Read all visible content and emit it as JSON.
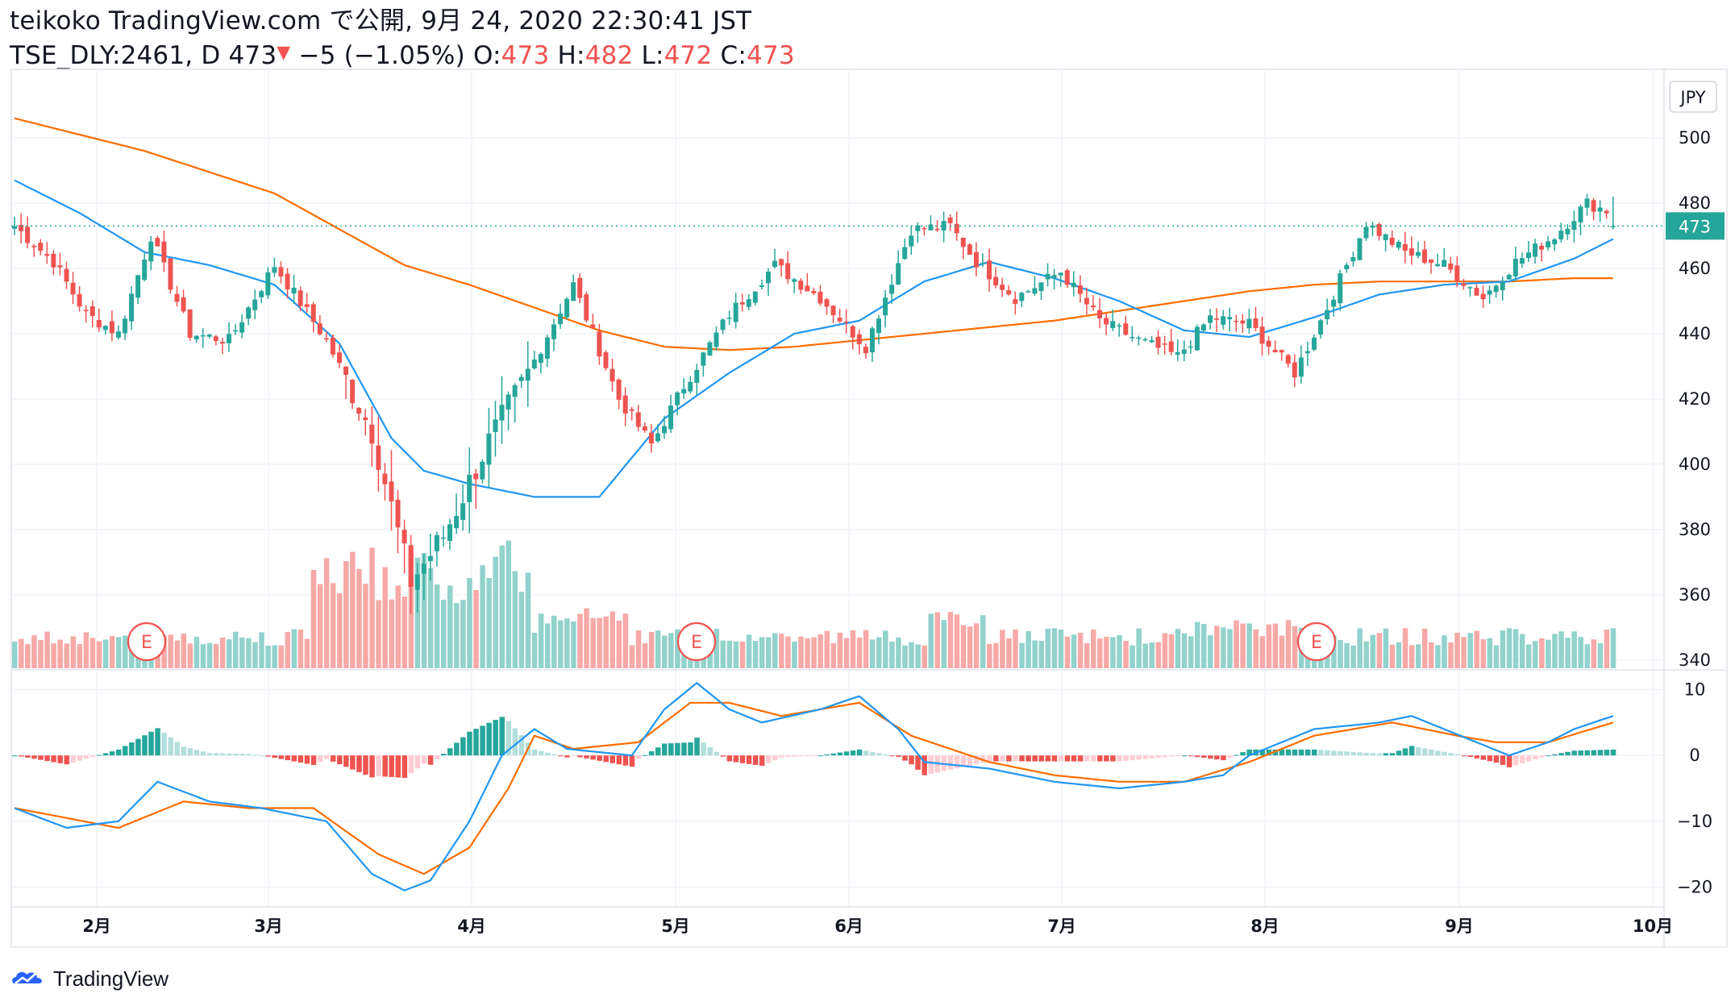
{
  "header": {
    "line1": "teikoko TradingView.com で公開, 9月 24, 2020 22:30:41 JST",
    "symbol": "TSE_DLY:2461, D 473",
    "change": "−5 (−1.05%)",
    "o_label": "O:",
    "o_value": "473",
    "h_label": "H:",
    "h_value": "482",
    "l_label": "L:",
    "l_value": "472",
    "c_label": "C:",
    "c_value": "473"
  },
  "currency": "JPY",
  "last_price_label": "473",
  "footer": {
    "brand": "TradingView"
  },
  "colors": {
    "up": "#26a69a",
    "down": "#ef5350",
    "vol_up": "#92d2cc",
    "vol_down": "#f7a9a7",
    "ma_short": "#2196f3",
    "ma_long": "#ff6d00",
    "macd": "#2196f3",
    "signal": "#ff6d00",
    "hist_up_strong": "#26a69a",
    "hist_up_weak": "#b2dfdb",
    "hist_down_strong": "#ef5350",
    "hist_down_weak": "#ffcdd2",
    "grid": "#f0f3fa",
    "border": "#e0e3eb"
  },
  "chart_data": {
    "type": "candlestick",
    "x_axis_labels": [
      "2月",
      "3月",
      "4月",
      "5月",
      "6月",
      "7月",
      "8月",
      "9月",
      "10月"
    ],
    "price_axis": {
      "ticks": [
        340,
        360,
        380,
        400,
        420,
        440,
        460,
        480,
        500
      ],
      "range": [
        337,
        521
      ]
    },
    "macd_axis": {
      "ticks": [
        10,
        0,
        -10,
        -20
      ],
      "range": [
        -23,
        13
      ]
    },
    "earnings_markers": [
      "E",
      "E",
      "E"
    ],
    "price_anchors": [
      [
        0,
        473
      ],
      [
        6,
        462
      ],
      [
        11,
        446
      ],
      [
        16,
        440
      ],
      [
        21,
        470
      ],
      [
        27,
        440
      ],
      [
        33,
        438
      ],
      [
        40,
        461
      ],
      [
        48,
        438
      ],
      [
        55,
        410
      ],
      [
        61,
        364
      ],
      [
        66,
        378
      ],
      [
        73,
        407
      ],
      [
        79,
        428
      ],
      [
        86,
        455
      ],
      [
        93,
        420
      ],
      [
        98,
        406
      ],
      [
        103,
        424
      ],
      [
        110,
        446
      ],
      [
        117,
        461
      ],
      [
        124,
        451
      ],
      [
        131,
        436
      ],
      [
        138,
        472
      ],
      [
        144,
        473
      ],
      [
        148,
        462
      ],
      [
        154,
        451
      ],
      [
        161,
        459
      ],
      [
        167,
        444
      ],
      [
        173,
        438
      ],
      [
        179,
        433
      ],
      [
        184,
        445
      ],
      [
        190,
        443
      ],
      [
        197,
        428
      ],
      [
        202,
        448
      ],
      [
        208,
        474
      ],
      [
        214,
        465
      ],
      [
        220,
        461
      ],
      [
        226,
        451
      ],
      [
        231,
        462
      ],
      [
        237,
        470
      ],
      [
        242,
        480
      ],
      [
        246,
        477
      ]
    ],
    "ohlc_last": {
      "open": 473,
      "high": 482,
      "low": 472,
      "close": 473
    },
    "ma_short_anchors": [
      [
        0,
        487
      ],
      [
        10,
        477
      ],
      [
        20,
        465
      ],
      [
        30,
        461
      ],
      [
        40,
        455
      ],
      [
        50,
        437
      ],
      [
        58,
        408
      ],
      [
        63,
        398
      ],
      [
        70,
        394
      ],
      [
        80,
        390
      ],
      [
        90,
        390
      ],
      [
        100,
        414
      ],
      [
        110,
        428
      ],
      [
        120,
        440
      ],
      [
        130,
        444
      ],
      [
        140,
        456
      ],
      [
        150,
        462
      ],
      [
        160,
        457
      ],
      [
        170,
        450
      ],
      [
        180,
        441
      ],
      [
        190,
        439
      ],
      [
        200,
        445
      ],
      [
        210,
        452
      ],
      [
        220,
        455
      ],
      [
        230,
        456
      ],
      [
        240,
        463
      ],
      [
        246,
        469
      ]
    ],
    "ma_long_anchors": [
      [
        0,
        506
      ],
      [
        20,
        496
      ],
      [
        40,
        483
      ],
      [
        60,
        461
      ],
      [
        70,
        455
      ],
      [
        80,
        448
      ],
      [
        90,
        441
      ],
      [
        100,
        436
      ],
      [
        110,
        435
      ],
      [
        120,
        436
      ],
      [
        130,
        438
      ],
      [
        140,
        440
      ],
      [
        150,
        442
      ],
      [
        160,
        444
      ],
      [
        170,
        447
      ],
      [
        180,
        450
      ],
      [
        190,
        453
      ],
      [
        200,
        455
      ],
      [
        210,
        456
      ],
      [
        220,
        456
      ],
      [
        230,
        456
      ],
      [
        240,
        457
      ],
      [
        246,
        457
      ]
    ],
    "macd_anchors": [
      [
        0,
        -8
      ],
      [
        8,
        -11
      ],
      [
        16,
        -10
      ],
      [
        22,
        -4
      ],
      [
        30,
        -7
      ],
      [
        38,
        -8
      ],
      [
        48,
        -10
      ],
      [
        55,
        -18
      ],
      [
        60,
        -20.5
      ],
      [
        64,
        -19
      ],
      [
        70,
        -10
      ],
      [
        75,
        0
      ],
      [
        80,
        4
      ],
      [
        85,
        1
      ],
      [
        95,
        0
      ],
      [
        100,
        7
      ],
      [
        105,
        11
      ],
      [
        110,
        7
      ],
      [
        115,
        5
      ],
      [
        124,
        7
      ],
      [
        130,
        9
      ],
      [
        136,
        4
      ],
      [
        140,
        -1
      ],
      [
        150,
        -2
      ],
      [
        160,
        -4
      ],
      [
        170,
        -5
      ],
      [
        180,
        -4
      ],
      [
        186,
        -3
      ],
      [
        190,
        0
      ],
      [
        200,
        4
      ],
      [
        210,
        5
      ],
      [
        215,
        6
      ],
      [
        225,
        2
      ],
      [
        230,
        0
      ],
      [
        236,
        2
      ],
      [
        240,
        4
      ],
      [
        246,
        6
      ]
    ],
    "signal_anchors": [
      [
        0,
        -8
      ],
      [
        16,
        -11
      ],
      [
        26,
        -7
      ],
      [
        36,
        -8
      ],
      [
        46,
        -8
      ],
      [
        56,
        -15
      ],
      [
        63,
        -18
      ],
      [
        70,
        -14
      ],
      [
        76,
        -5
      ],
      [
        80,
        3
      ],
      [
        86,
        1
      ],
      [
        96,
        2
      ],
      [
        104,
        8
      ],
      [
        110,
        8
      ],
      [
        118,
        6
      ],
      [
        130,
        8
      ],
      [
        138,
        3
      ],
      [
        150,
        -1
      ],
      [
        160,
        -3
      ],
      [
        170,
        -4
      ],
      [
        180,
        -4
      ],
      [
        190,
        -1
      ],
      [
        200,
        3
      ],
      [
        212,
        5
      ],
      [
        222,
        3
      ],
      [
        228,
        2
      ],
      [
        236,
        2
      ],
      [
        246,
        5
      ]
    ]
  }
}
